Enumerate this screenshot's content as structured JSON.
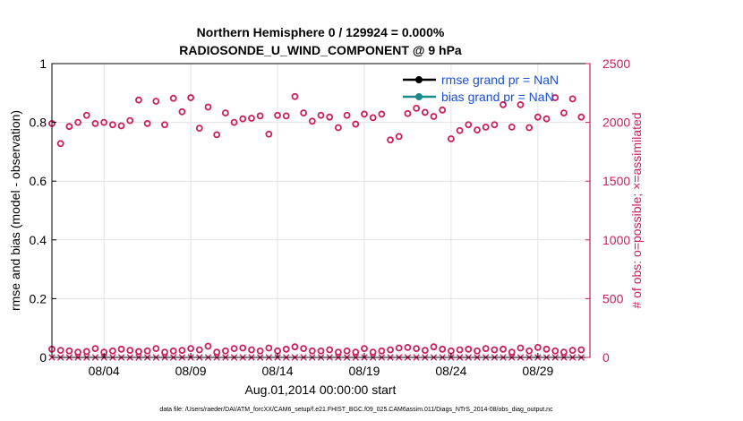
{
  "chart_data": {
    "type": "scatter",
    "title_line1": "Northern Hemisphere 0 / 129924 = 0.000%",
    "title_line2": "RADIOSONDE_U_WIND_COMPONENT @ 9 hPa",
    "ylabel_left": "rmse and bias (model - observation)",
    "ylabel_right": "# of obs: o=possible; ×=assimilated",
    "xlabel": "Aug.01,2014 00:00:00 start",
    "footer": "data file: /Users/raeder/DAI/ATM_forcXX/CAM6_setup/f.e21.FHIST_BGC.f09_025.CAM6assim.011/Diags_NTrS_2014-08/obs_diag_output.nc",
    "xlim": [
      0,
      31
    ],
    "ylim_left": [
      0,
      1
    ],
    "ylim_right": [
      0,
      2500
    ],
    "left_ticks": [
      "0",
      "0.2",
      "0.4",
      "0.6",
      "0.8",
      "1"
    ],
    "right_ticks": [
      "0",
      "500",
      "1000",
      "1500",
      "2000",
      "2500"
    ],
    "x_ticks": [
      {
        "day": 3,
        "label": "08/04"
      },
      {
        "day": 8,
        "label": "08/09"
      },
      {
        "day": 13,
        "label": "08/14"
      },
      {
        "day": 18,
        "label": "08/19"
      },
      {
        "day": 23,
        "label": "08/24"
      },
      {
        "day": 28,
        "label": "08/29"
      }
    ],
    "grid": true,
    "legend": [
      {
        "label": "rmse grand pr = NaN",
        "color": "#000000"
      },
      {
        "label": "bias grand pr = NaN",
        "color": "#1a8a8a"
      }
    ],
    "legend_position": "top-right",
    "colors": {
      "counts": "#cc1f5e",
      "legend_text": "#1a4fd6",
      "axis": "#000000"
    },
    "series": [
      {
        "name": "possible (upper)",
        "x": [
          0.0,
          0.5,
          1.0,
          1.5,
          2.0,
          2.5,
          3.0,
          3.5,
          4.0,
          4.5,
          5.0,
          5.5,
          6.0,
          6.5,
          7.0,
          7.5,
          8.0,
          8.5,
          9.0,
          9.5,
          10.0,
          10.5,
          11.0,
          11.5,
          12.0,
          12.5,
          13.0,
          13.5,
          14.0,
          14.5,
          15.0,
          15.5,
          16.0,
          16.5,
          17.0,
          17.5,
          18.0,
          18.5,
          19.0,
          19.5,
          20.0,
          20.5,
          21.0,
          21.5,
          22.0,
          22.5,
          23.0,
          23.5,
          24.0,
          24.5,
          25.0,
          25.5,
          26.0,
          26.5,
          27.0,
          27.5,
          28.0,
          28.5,
          29.0,
          29.5,
          30.0,
          30.5
        ],
        "values": [
          1990,
          1820,
          1965,
          2000,
          2060,
          1990,
          2000,
          1980,
          1970,
          2015,
          2190,
          1990,
          2180,
          1980,
          2205,
          2090,
          2210,
          1950,
          2130,
          1895,
          2080,
          2000,
          2030,
          2035,
          2055,
          1900,
          2060,
          2055,
          2220,
          2080,
          2010,
          2060,
          2045,
          1955,
          2060,
          1985,
          2070,
          2040,
          2070,
          1850,
          1880,
          2075,
          2120,
          2085,
          2050,
          2105,
          1860,
          1930,
          1980,
          1935,
          1960,
          1980,
          2150,
          1960,
          2150,
          1955,
          2045,
          2030,
          2210,
          2080,
          2200,
          2045
        ]
      },
      {
        "name": "possible (lower)",
        "x": [
          0.0,
          0.5,
          1.0,
          1.5,
          2.0,
          2.5,
          3.0,
          3.5,
          4.0,
          4.5,
          5.0,
          5.5,
          6.0,
          6.5,
          7.0,
          7.5,
          8.0,
          8.5,
          9.0,
          9.5,
          10.0,
          10.5,
          11.0,
          11.5,
          12.0,
          12.5,
          13.0,
          13.5,
          14.0,
          14.5,
          15.0,
          15.5,
          16.0,
          16.5,
          17.0,
          17.5,
          18.0,
          18.5,
          19.0,
          19.5,
          20.0,
          20.5,
          21.0,
          21.5,
          22.0,
          22.5,
          23.0,
          23.5,
          24.0,
          24.5,
          25.0,
          25.5,
          26.0,
          26.5,
          27.0,
          27.5,
          28.0,
          28.5,
          29.0,
          29.5,
          30.0,
          30.5
        ],
        "values": [
          70,
          60,
          55,
          45,
          50,
          75,
          45,
          55,
          70,
          60,
          50,
          55,
          75,
          45,
          55,
          60,
          75,
          65,
          95,
          45,
          55,
          75,
          80,
          65,
          55,
          80,
          55,
          70,
          90,
          75,
          55,
          55,
          65,
          45,
          55,
          45,
          75,
          45,
          55,
          65,
          80,
          85,
          75,
          60,
          90,
          70,
          55,
          65,
          70,
          55,
          75,
          65,
          70,
          45,
          80,
          55,
          85,
          70,
          55,
          45,
          60,
          65
        ]
      },
      {
        "name": "assimilated",
        "x": [
          0.0,
          0.5,
          1.0,
          1.5,
          2.0,
          2.5,
          3.0,
          3.5,
          4.0,
          4.5,
          5.0,
          5.5,
          6.0,
          6.5,
          7.0,
          7.5,
          8.0,
          8.5,
          9.0,
          9.5,
          10.0,
          10.5,
          11.0,
          11.5,
          12.0,
          12.5,
          13.0,
          13.5,
          14.0,
          14.5,
          15.0,
          15.5,
          16.0,
          16.5,
          17.0,
          17.5,
          18.0,
          18.5,
          19.0,
          19.5,
          20.0,
          20.5,
          21.0,
          21.5,
          22.0,
          22.5,
          23.0,
          23.5,
          24.0,
          24.5,
          25.0,
          25.5,
          26.0,
          26.5,
          27.0,
          27.5,
          28.0,
          28.5,
          29.0,
          29.5,
          30.0,
          30.5
        ],
        "values": [
          0,
          0,
          0,
          0,
          0,
          0,
          0,
          0,
          0,
          0,
          0,
          0,
          0,
          0,
          0,
          0,
          0,
          0,
          0,
          0,
          0,
          0,
          0,
          0,
          0,
          0,
          0,
          0,
          0,
          0,
          0,
          0,
          0,
          0,
          0,
          0,
          0,
          0,
          0,
          0,
          0,
          0,
          0,
          0,
          0,
          0,
          0,
          0,
          0,
          0,
          0,
          0,
          0,
          0,
          0,
          0,
          0,
          0,
          0,
          0,
          0,
          0
        ]
      }
    ]
  }
}
